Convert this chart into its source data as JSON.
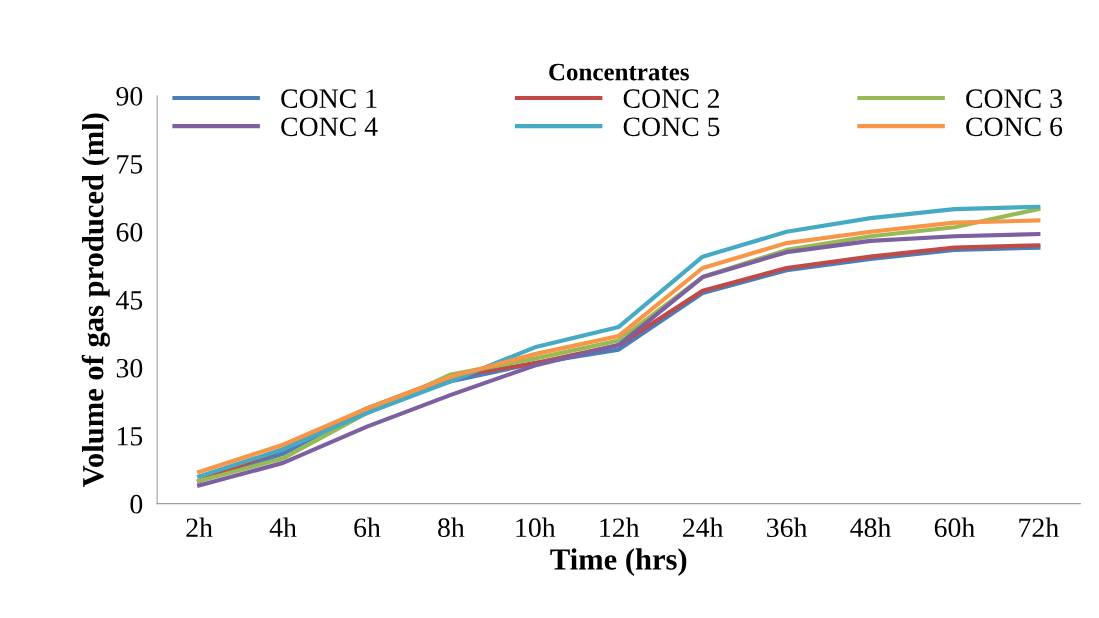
{
  "chart_data": {
    "type": "line",
    "legend_title": "Concentrates",
    "xlabel": "Time (hrs)",
    "ylabel": "Volume of gas produced (ml)",
    "categories": [
      "2h",
      "4h",
      "6h",
      "8h",
      "10h",
      "12h",
      "24h",
      "36h",
      "48h",
      "60h",
      "72h"
    ],
    "ylim": [
      0,
      90
    ],
    "yticks": [
      0,
      15,
      30,
      45,
      60,
      75,
      90
    ],
    "grid": false,
    "legend": "top",
    "series": [
      {
        "name": "CONC 1",
        "color": "#4a7ebb",
        "values": [
          5,
          11,
          21,
          27,
          31,
          34,
          46.5,
          51.5,
          54,
          56,
          56.5
        ]
      },
      {
        "name": "CONC 2",
        "color": "#be4b48",
        "values": [
          5,
          12,
          21,
          28,
          31,
          35,
          47,
          52,
          54.5,
          56.5,
          57
        ]
      },
      {
        "name": "CONC 3",
        "color": "#98b954",
        "values": [
          5,
          10,
          20,
          28.5,
          32,
          36,
          50,
          56,
          59,
          61,
          65
        ]
      },
      {
        "name": "CONC 4",
        "color": "#7d60a0",
        "values": [
          4,
          9,
          17,
          24,
          30.5,
          35,
          50,
          55.5,
          58,
          59,
          59.5
        ]
      },
      {
        "name": "CONC 5",
        "color": "#46aac5",
        "values": [
          6,
          12,
          20,
          27,
          34.5,
          39,
          54.5,
          60,
          63,
          65,
          65.5
        ]
      },
      {
        "name": "CONC 6",
        "color": "#f79646",
        "values": [
          7,
          13,
          21,
          28,
          33,
          37,
          52,
          57.5,
          60,
          62,
          62.5
        ]
      }
    ]
  }
}
